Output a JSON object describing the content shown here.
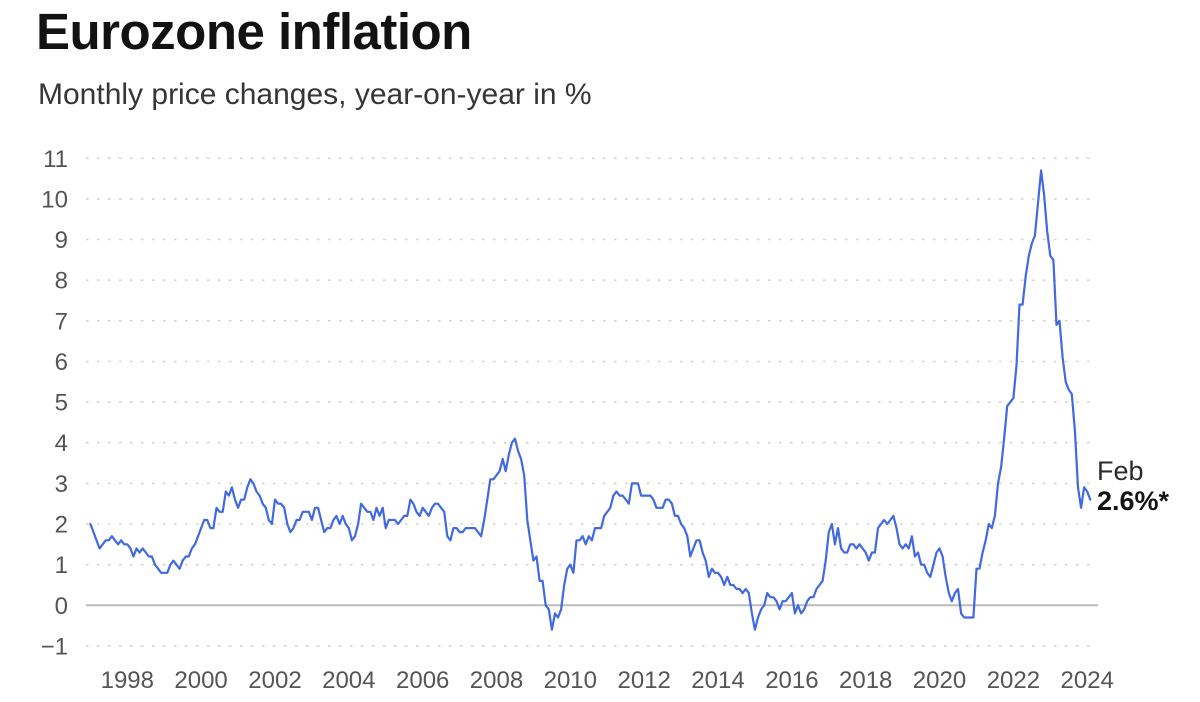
{
  "colors": {
    "line": "#4169e1",
    "grid": "#d2d2d2",
    "zero_line": "#bbbbbb",
    "axis_text": "#555555",
    "title_text": "#121212",
    "subtitle_text": "#363636"
  },
  "annotation": {
    "month": "Feb",
    "value": "2.6%*"
  },
  "chart_data": {
    "type": "line",
    "title": "Eurozone inflation",
    "subtitle": "Monthly price changes, year-on-year in %",
    "frequency": "monthly",
    "x_start": "1997-01",
    "x_end": "2024-02",
    "ylim": [
      -1,
      11
    ],
    "y_ticks": [
      11,
      10,
      9,
      8,
      7,
      6,
      5,
      4,
      3,
      2,
      1,
      0,
      -1
    ],
    "y_tick_labels": [
      "11",
      "10",
      "9",
      "8",
      "7",
      "6",
      "5",
      "4",
      "3",
      "2",
      "1",
      "0",
      "−1"
    ],
    "x_tick_years": [
      1998,
      2000,
      2002,
      2004,
      2006,
      2008,
      2010,
      2012,
      2014,
      2016,
      2018,
      2020,
      2022,
      2024
    ],
    "x_tick_labels": [
      "1998",
      "2000",
      "2002",
      "2004",
      "2006",
      "2008",
      "2010",
      "2012",
      "2014",
      "2016",
      "2018",
      "2020",
      "2022",
      "2024"
    ],
    "grid": "horizontal dotted, solid zero line",
    "legend": "none",
    "last_point": {
      "label": "Feb",
      "value": 2.6,
      "value_label": "2.6%*"
    },
    "series": [
      {
        "name": "Eurozone HICP inflation, % year-on-year",
        "start_year": 1997,
        "start_month": 1,
        "values": [
          2.0,
          1.8,
          1.6,
          1.4,
          1.5,
          1.6,
          1.6,
          1.7,
          1.6,
          1.5,
          1.6,
          1.5,
          1.5,
          1.4,
          1.2,
          1.4,
          1.3,
          1.4,
          1.3,
          1.2,
          1.2,
          1.0,
          0.9,
          0.8,
          0.8,
          0.8,
          1.0,
          1.1,
          1.0,
          0.9,
          1.1,
          1.2,
          1.2,
          1.4,
          1.5,
          1.7,
          1.9,
          2.1,
          2.1,
          1.9,
          1.9,
          2.4,
          2.3,
          2.3,
          2.8,
          2.7,
          2.9,
          2.6,
          2.4,
          2.6,
          2.6,
          2.9,
          3.1,
          3.0,
          2.8,
          2.7,
          2.5,
          2.4,
          2.1,
          2.0,
          2.6,
          2.5,
          2.5,
          2.4,
          2.0,
          1.8,
          1.9,
          2.1,
          2.1,
          2.3,
          2.3,
          2.3,
          2.1,
          2.4,
          2.4,
          2.1,
          1.8,
          1.9,
          1.9,
          2.1,
          2.2,
          2.0,
          2.2,
          2.0,
          1.9,
          1.6,
          1.7,
          2.0,
          2.5,
          2.4,
          2.3,
          2.3,
          2.1,
          2.4,
          2.2,
          2.4,
          1.9,
          2.1,
          2.1,
          2.1,
          2.0,
          2.1,
          2.2,
          2.2,
          2.6,
          2.5,
          2.3,
          2.2,
          2.4,
          2.3,
          2.2,
          2.4,
          2.5,
          2.5,
          2.4,
          2.3,
          1.7,
          1.6,
          1.9,
          1.9,
          1.8,
          1.8,
          1.9,
          1.9,
          1.9,
          1.9,
          1.8,
          1.7,
          2.1,
          2.6,
          3.1,
          3.1,
          3.2,
          3.3,
          3.6,
          3.3,
          3.7,
          4.0,
          4.1,
          3.8,
          3.6,
          3.2,
          2.1,
          1.6,
          1.1,
          1.2,
          0.6,
          0.6,
          0.0,
          -0.1,
          -0.6,
          -0.2,
          -0.3,
          -0.1,
          0.5,
          0.9,
          1.0,
          0.8,
          1.6,
          1.6,
          1.7,
          1.5,
          1.7,
          1.6,
          1.9,
          1.9,
          1.9,
          2.2,
          2.3,
          2.4,
          2.7,
          2.8,
          2.7,
          2.7,
          2.6,
          2.5,
          3.0,
          3.0,
          3.0,
          2.7,
          2.7,
          2.7,
          2.7,
          2.6,
          2.4,
          2.4,
          2.4,
          2.6,
          2.6,
          2.5,
          2.2,
          2.2,
          2.0,
          1.9,
          1.7,
          1.2,
          1.4,
          1.6,
          1.6,
          1.3,
          1.1,
          0.7,
          0.9,
          0.8,
          0.8,
          0.7,
          0.5,
          0.7,
          0.5,
          0.5,
          0.4,
          0.4,
          0.3,
          0.4,
          0.3,
          -0.2,
          -0.6,
          -0.3,
          -0.1,
          0.0,
          0.3,
          0.2,
          0.2,
          0.1,
          -0.1,
          0.1,
          0.1,
          0.2,
          0.3,
          -0.2,
          0.0,
          -0.2,
          -0.1,
          0.1,
          0.2,
          0.2,
          0.4,
          0.5,
          0.6,
          1.1,
          1.8,
          2.0,
          1.5,
          1.9,
          1.4,
          1.3,
          1.3,
          1.5,
          1.5,
          1.4,
          1.5,
          1.4,
          1.3,
          1.1,
          1.3,
          1.3,
          1.9,
          2.0,
          2.1,
          2.0,
          2.1,
          2.2,
          1.9,
          1.5,
          1.4,
          1.5,
          1.4,
          1.7,
          1.2,
          1.3,
          1.0,
          1.0,
          0.8,
          0.7,
          1.0,
          1.3,
          1.4,
          1.2,
          0.7,
          0.3,
          0.1,
          0.3,
          0.4,
          -0.2,
          -0.3,
          -0.3,
          -0.3,
          -0.3,
          0.9,
          0.9,
          1.3,
          1.6,
          2.0,
          1.9,
          2.2,
          3.0,
          3.4,
          4.1,
          4.9,
          5.0,
          5.1,
          5.9,
          7.4,
          7.4,
          8.1,
          8.6,
          8.9,
          9.1,
          9.9,
          10.7,
          10.1,
          9.2,
          8.6,
          8.5,
          6.9,
          7.0,
          6.1,
          5.5,
          5.3,
          5.2,
          4.3,
          2.9,
          2.4,
          2.9,
          2.8,
          2.6
        ]
      }
    ]
  }
}
